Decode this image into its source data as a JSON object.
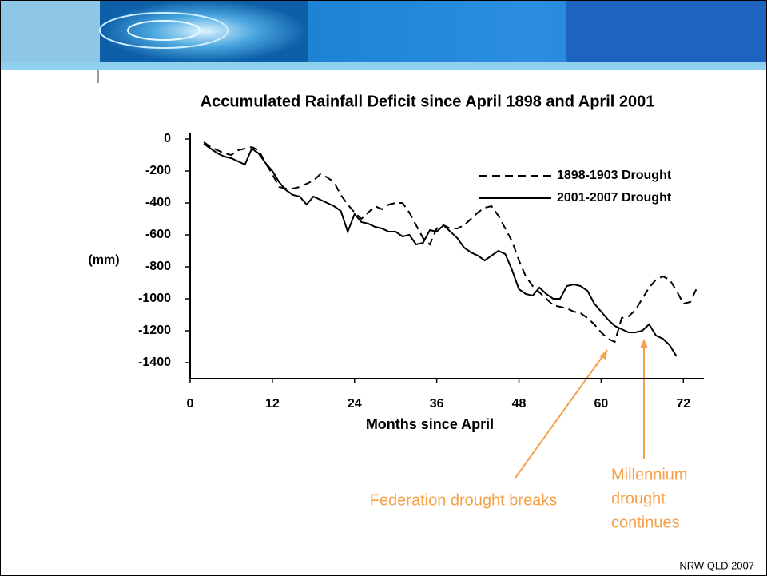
{
  "chart_data": {
    "type": "line",
    "title": "Accumulated Rainfall Deficit since April 1898 and April 2001",
    "y_label": "(mm)",
    "x_label": "Months since April",
    "x": [
      2,
      3,
      4,
      5,
      6,
      7,
      8,
      9,
      10,
      11,
      12,
      13,
      14,
      15,
      16,
      17,
      18,
      19,
      20,
      21,
      22,
      23,
      24,
      25,
      26,
      27,
      28,
      29,
      30,
      31,
      32,
      33,
      34,
      35,
      36,
      37,
      38,
      39,
      40,
      41,
      42,
      43,
      44,
      45,
      46,
      47,
      48,
      49,
      50,
      51,
      52,
      53,
      54,
      55,
      56,
      57,
      58,
      59,
      60,
      61,
      62,
      63,
      64,
      65,
      66,
      67,
      68,
      69,
      70,
      71,
      72,
      73,
      74
    ],
    "series": [
      {
        "name": "1898-1903 Drought",
        "color": "#000000",
        "dash": true,
        "values": [
          -20,
          -50,
          -70,
          -90,
          -100,
          -70,
          -60,
          -50,
          -70,
          -150,
          -220,
          -300,
          -310,
          -310,
          -300,
          -280,
          -260,
          -220,
          -240,
          -270,
          -350,
          -410,
          -460,
          -500,
          -460,
          -420,
          -440,
          -410,
          -400,
          -400,
          -460,
          -540,
          -620,
          -660,
          -560,
          -540,
          -560,
          -560,
          -540,
          -500,
          -460,
          -430,
          -420,
          -480,
          -560,
          -640,
          -760,
          -860,
          -920,
          -960,
          -1000,
          -1040,
          -1050,
          -1060,
          -1080,
          -1090,
          -1120,
          -1160,
          -1210,
          -1250,
          -1270,
          -1120,
          -1110,
          -1070,
          -1000,
          -930,
          -880,
          -860,
          -880,
          -950,
          -1030,
          -1020,
          -930
        ]
      },
      {
        "name": "2001-2007 Drought",
        "color": "#000000",
        "dash": false,
        "values": [
          -30,
          -60,
          -90,
          -110,
          -120,
          -140,
          -160,
          -60,
          -90,
          -150,
          -200,
          -270,
          -320,
          -350,
          -360,
          -410,
          -360,
          -380,
          -400,
          -420,
          -450,
          -580,
          -470,
          -520,
          -530,
          -550,
          -560,
          -580,
          -580,
          -610,
          -600,
          -660,
          -650,
          -570,
          -580,
          -540,
          -580,
          -620,
          -680,
          -710,
          -730,
          -760,
          -730,
          -700,
          -720,
          -820,
          -940,
          -970,
          -980,
          -930,
          -970,
          -1000,
          -1000,
          -920,
          -910,
          -920,
          -950,
          -1030,
          -1080,
          -1130,
          -1170,
          -1190,
          -1210,
          -1210,
          -1200,
          -1160,
          -1230,
          -1250,
          -1290,
          -1360,
          null,
          null,
          null
        ]
      }
    ],
    "xlim": [
      0,
      75
    ],
    "xticks": [
      0,
      12,
      24,
      36,
      48,
      60,
      72
    ],
    "ylim": [
      -1500,
      0
    ],
    "yticks": [
      0,
      -200,
      -400,
      -600,
      -800,
      -1000,
      -1200,
      -1400
    ],
    "grid": false,
    "legend": "upper right",
    "annotations": [
      {
        "text": "Federation drought breaks",
        "color": "#f5a04a"
      },
      {
        "lines": [
          "Millennium",
          "drought",
          "continues"
        ],
        "color": "#f5a04a"
      }
    ],
    "footer": "NRW QLD 2007"
  }
}
